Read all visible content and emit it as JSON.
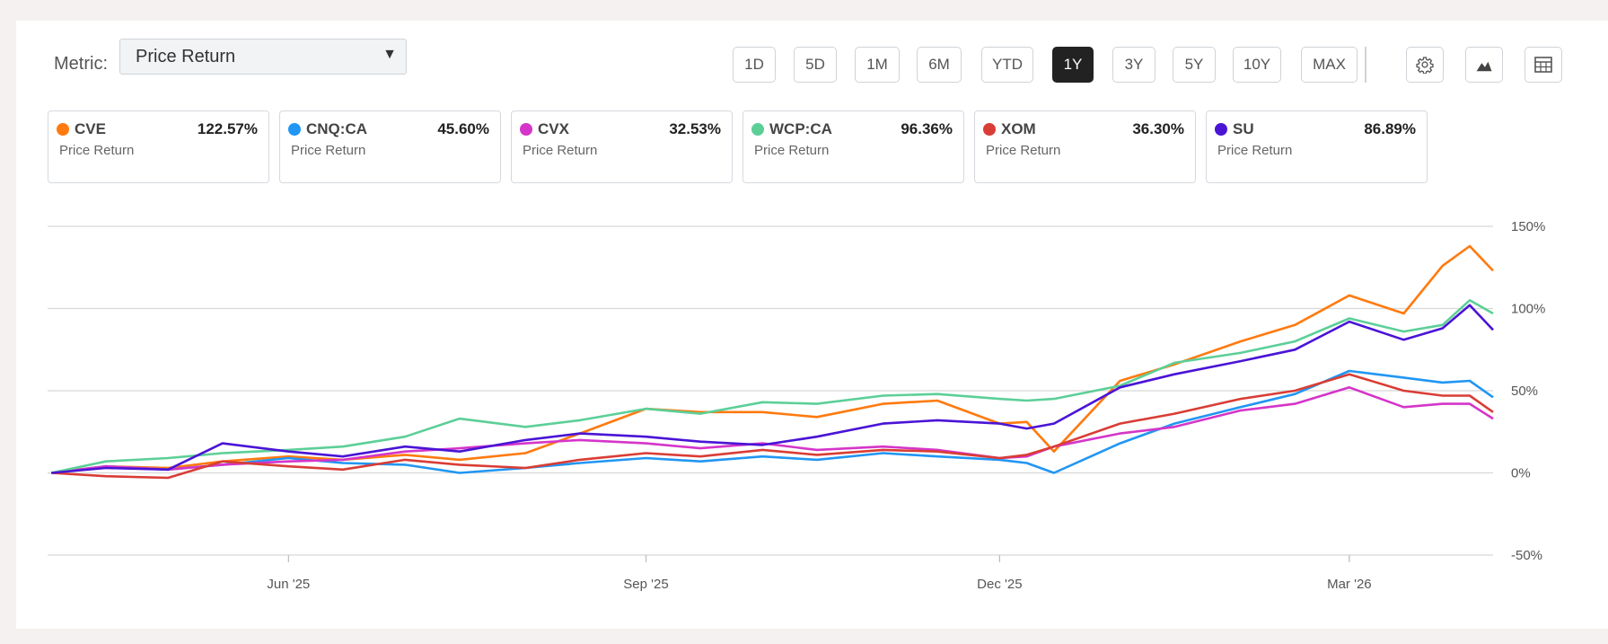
{
  "controls": {
    "metric_label": "Metric:",
    "metric_value": "Price Return",
    "ranges": [
      "1D",
      "5D",
      "1M",
      "6M",
      "YTD",
      "1Y",
      "3Y",
      "5Y",
      "10Y",
      "MAX"
    ],
    "active_range": "1Y",
    "icons": [
      "gear-icon",
      "mountain-chart-icon",
      "table-icon"
    ]
  },
  "legend": [
    {
      "ticker": "CVE",
      "value": "122.57%",
      "metric": "Price Return",
      "color": "#ff7a0f"
    },
    {
      "ticker": "CNQ:CA",
      "value": "45.60%",
      "metric": "Price Return",
      "color": "#2196f3"
    },
    {
      "ticker": "CVX",
      "value": "32.53%",
      "metric": "Price Return",
      "color": "#d535c9"
    },
    {
      "ticker": "WCP:CA",
      "value": "96.36%",
      "metric": "Price Return",
      "color": "#5ccf98"
    },
    {
      "ticker": "XOM",
      "value": "36.30%",
      "metric": "Price Return",
      "color": "#d93d35"
    },
    {
      "ticker": "SU",
      "value": "86.89%",
      "metric": "Price Return",
      "color": "#4a14d6"
    }
  ],
  "chart_data": {
    "type": "line",
    "ylabel": "",
    "xlabel": "",
    "ylim": [
      -50,
      150
    ],
    "yticks": [
      150,
      100,
      50,
      0,
      -50
    ],
    "ytick_labels": [
      "150%",
      "100%",
      "50%",
      "0%",
      "-50%"
    ],
    "xlim": [
      "2025-03-31",
      "2026-04-07"
    ],
    "xticks": [
      {
        "date": "2025-06-01",
        "label": "Jun '25"
      },
      {
        "date": "2025-09-01",
        "label": "Sep '25"
      },
      {
        "date": "2025-12-01",
        "label": "Dec '25"
      },
      {
        "date": "2026-03-01",
        "label": "Mar '26"
      }
    ],
    "grid": true,
    "x": [
      "2025-04-01",
      "2025-04-15",
      "2025-05-01",
      "2025-05-15",
      "2025-06-01",
      "2025-06-15",
      "2025-07-01",
      "2025-07-15",
      "2025-08-01",
      "2025-08-15",
      "2025-09-01",
      "2025-09-15",
      "2025-10-01",
      "2025-10-15",
      "2025-11-01",
      "2025-11-15",
      "2025-12-01",
      "2025-12-08",
      "2025-12-15",
      "2026-01-01",
      "2026-01-15",
      "2026-02-01",
      "2026-02-15",
      "2026-03-01",
      "2026-03-15",
      "2026-03-25",
      "2026-04-01",
      "2026-04-07"
    ],
    "series": [
      {
        "name": "CVE",
        "color": "#ff7a0f",
        "values": [
          0,
          4,
          3,
          7,
          10,
          8,
          11,
          8,
          12,
          24,
          39,
          37,
          37,
          34,
          42,
          44,
          30,
          31,
          13,
          56,
          66,
          80,
          90,
          108,
          97,
          126,
          138,
          123
        ]
      },
      {
        "name": "CNQ:CA",
        "color": "#2196f3",
        "values": [
          0,
          4,
          2,
          5,
          9,
          6,
          5,
          0,
          3,
          6,
          9,
          7,
          10,
          8,
          12,
          10,
          8,
          6,
          0,
          18,
          30,
          40,
          48,
          62,
          58,
          55,
          56,
          46
        ]
      },
      {
        "name": "CVX",
        "color": "#d535c9",
        "values": [
          0,
          4,
          2,
          5,
          7,
          8,
          13,
          15,
          18,
          20,
          18,
          15,
          18,
          14,
          16,
          14,
          9,
          10,
          16,
          24,
          28,
          38,
          42,
          52,
          40,
          42,
          42,
          33
        ]
      },
      {
        "name": "WCP:CA",
        "color": "#5ccf98",
        "values": [
          0,
          7,
          9,
          12,
          14,
          16,
          22,
          33,
          28,
          32,
          39,
          36,
          43,
          42,
          47,
          48,
          45,
          44,
          45,
          53,
          67,
          73,
          80,
          94,
          86,
          90,
          105,
          97
        ]
      },
      {
        "name": "XOM",
        "color": "#d93d35",
        "values": [
          0,
          -2,
          -3,
          7,
          4,
          2,
          8,
          5,
          3,
          8,
          12,
          10,
          14,
          11,
          14,
          13,
          9,
          11,
          16,
          30,
          36,
          45,
          50,
          60,
          50,
          47,
          47,
          37
        ]
      },
      {
        "name": "SU",
        "color": "#4a14d6",
        "values": [
          0,
          3,
          2,
          18,
          13,
          10,
          16,
          13,
          20,
          24,
          22,
          19,
          17,
          22,
          30,
          32,
          30,
          27,
          30,
          52,
          60,
          68,
          75,
          92,
          81,
          88,
          102,
          87
        ]
      }
    ]
  }
}
